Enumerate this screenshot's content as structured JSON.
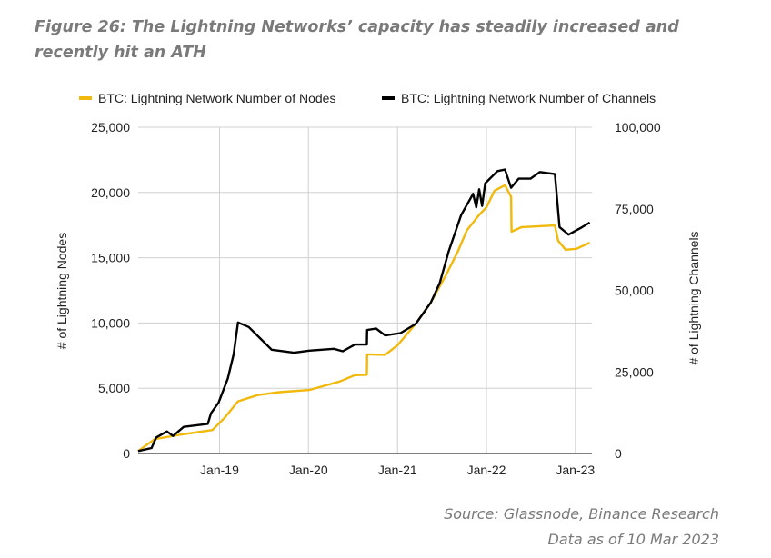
{
  "title": "Figure 26: The Lightning Networks’ capacity has steadily increased and recently hit an ATH",
  "source": "Source: Glassnode, Binance Research",
  "data_as_of": "Data as of 10 Mar 2023",
  "chart_data": {
    "type": "line",
    "title": "",
    "xlabel": "",
    "ylabel": "# of Lightning Nodes",
    "y2label": "# of Lightning Channels",
    "ylim": [
      0,
      25000
    ],
    "y2lim": [
      0,
      100000
    ],
    "xlim": [
      "2018-02-01",
      "2023-03-10"
    ],
    "yticks": [
      "0",
      "5,000",
      "10,000",
      "15,000",
      "20,000",
      "25,000"
    ],
    "y2ticks": [
      "0",
      "25,000",
      "50,000",
      "75,000",
      "100,000"
    ],
    "xticks": [
      {
        "label": "Jan-19",
        "date": "2019-01-01"
      },
      {
        "label": "Jan-20",
        "date": "2020-01-01"
      },
      {
        "label": "Jan-21",
        "date": "2021-01-01"
      },
      {
        "label": "Jan-22",
        "date": "2022-01-01"
      },
      {
        "label": "Jan-23",
        "date": "2023-01-01"
      }
    ],
    "grid": true,
    "legend_position": "top",
    "series": [
      {
        "name": "BTC: Lightning Network Number of Nodes",
        "axis": "left",
        "color": "#F0B90B",
        "x": [
          "2018-02-01",
          "2018-04-10",
          "2018-07-31",
          "2018-12-03",
          "2019-01-22",
          "2019-03-18",
          "2019-06-07",
          "2019-09-03",
          "2020-01-05",
          "2020-05-09",
          "2020-07-10",
          "2020-08-28",
          "2020-08-29",
          "2020-11-11",
          "2021-01-01",
          "2021-03-16",
          "2021-05-17",
          "2021-07-18",
          "2021-09-06",
          "2021-10-13",
          "2021-12-02",
          "2022-01-01",
          "2022-02-03",
          "2022-03-18",
          "2022-04-12",
          "2022-04-14",
          "2022-05-26",
          "2022-10-09",
          "2022-10-22",
          "2022-11-22",
          "2023-01-05",
          "2023-03-01"
        ],
        "values": [
          190,
          1100,
          1460,
          1800,
          2740,
          4000,
          4480,
          4700,
          4870,
          5520,
          6000,
          6030,
          7600,
          7560,
          8300,
          9930,
          11550,
          13640,
          15500,
          17120,
          18280,
          18860,
          20140,
          20560,
          19670,
          17000,
          17350,
          17470,
          16310,
          15610,
          15680,
          16150
        ]
      },
      {
        "name": "BTC: Lightning Network Number of Channels",
        "axis": "right",
        "color": "#000000",
        "x": [
          "2018-02-01",
          "2018-03-28",
          "2018-04-16",
          "2018-05-30",
          "2018-06-24",
          "2018-08-07",
          "2018-11-14",
          "2018-11-27",
          "2018-12-28",
          "2019-02-04",
          "2019-02-28",
          "2019-03-18",
          "2019-05-01",
          "2019-06-20",
          "2019-08-03",
          "2019-11-03",
          "2020-01-05",
          "2020-04-15",
          "2020-05-21",
          "2020-07-10",
          "2020-08-28",
          "2020-08-29",
          "2020-10-05",
          "2020-11-11",
          "2021-01-13",
          "2021-03-16",
          "2021-05-17",
          "2021-06-23",
          "2021-07-30",
          "2021-09-19",
          "2021-11-07",
          "2021-11-20",
          "2021-12-02",
          "2021-12-14",
          "2021-12-27",
          "2022-02-15",
          "2022-03-18",
          "2022-04-12",
          "2022-05-13",
          "2022-07-01",
          "2022-08-08",
          "2022-10-09",
          "2022-10-28",
          "2022-12-04",
          "2023-01-29",
          "2023-03-01"
        ],
        "values": [
          740,
          1670,
          4900,
          6770,
          5380,
          8160,
          9090,
          12340,
          15580,
          23000,
          30430,
          40170,
          38780,
          35060,
          31820,
          30890,
          31540,
          32100,
          31350,
          33400,
          33400,
          37850,
          38310,
          36180,
          36920,
          39700,
          46200,
          52230,
          61970,
          73100,
          79590,
          75420,
          80980,
          75880,
          82840,
          86550,
          87010,
          81450,
          84230,
          84230,
          86270,
          85620,
          69390,
          67070,
          69390,
          70780
        ]
      }
    ]
  }
}
